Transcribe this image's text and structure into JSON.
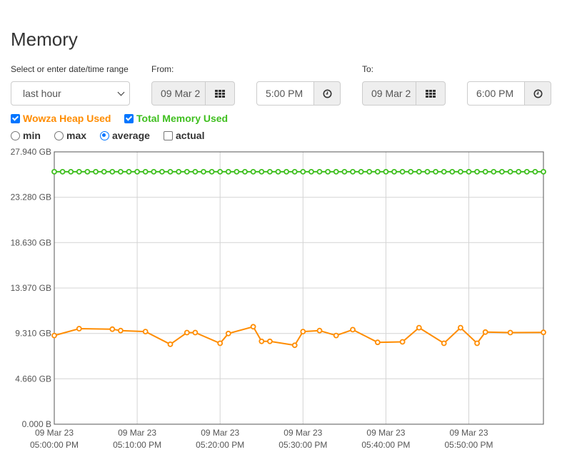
{
  "page": {
    "title": "Memory"
  },
  "range": {
    "label": "Select or enter date/time range",
    "selected": "last hour",
    "from_label": "From:",
    "to_label": "To:",
    "from_date": "09 Mar 2",
    "from_time": "5:00 PM",
    "to_date": "09 Mar 2",
    "to_time": "6:00 PM"
  },
  "series_toggles": [
    {
      "label": "Wowza Heap Used",
      "checked": true,
      "color": "#ff8c00"
    },
    {
      "label": "Total Memory Used",
      "checked": true,
      "color": "#3fbf1f"
    }
  ],
  "stat_options": [
    {
      "label": "min",
      "type": "radio",
      "selected": false
    },
    {
      "label": "max",
      "type": "radio",
      "selected": false
    },
    {
      "label": "average",
      "type": "radio",
      "selected": true
    },
    {
      "label": "actual",
      "type": "checkbox",
      "selected": false
    }
  ],
  "chart_data": {
    "type": "line",
    "ylim": [
      0,
      27.94
    ],
    "yticks": [
      {
        "value": 27.94,
        "label": "27.940 GB"
      },
      {
        "value": 23.28,
        "label": "23.280 GB"
      },
      {
        "value": 18.63,
        "label": "18.630 GB"
      },
      {
        "value": 13.97,
        "label": "13.970 GB"
      },
      {
        "value": 9.31,
        "label": "9.310 GB"
      },
      {
        "value": 4.66,
        "label": "4.660 GB"
      },
      {
        "value": 0,
        "label": "0.000 B"
      }
    ],
    "xlim": [
      0,
      59
    ],
    "xticks": [
      {
        "value": 0,
        "line1": "09 Mar 23",
        "line2": "05:00:00 PM"
      },
      {
        "value": 10,
        "line1": "09 Mar 23",
        "line2": "05:10:00 PM"
      },
      {
        "value": 20,
        "line1": "09 Mar 23",
        "line2": "05:20:00 PM"
      },
      {
        "value": 30,
        "line1": "09 Mar 23",
        "line2": "05:30:00 PM"
      },
      {
        "value": 40,
        "line1": "09 Mar 23",
        "line2": "05:40:00 PM"
      },
      {
        "value": 50,
        "line1": "09 Mar 23",
        "line2": "05:50:00 PM"
      }
    ],
    "series": [
      {
        "color": "#ff8c00",
        "points": [
          [
            0,
            9.1
          ],
          [
            3,
            9.8
          ],
          [
            7,
            9.75
          ],
          [
            8,
            9.6
          ],
          [
            11,
            9.5
          ],
          [
            14,
            8.2
          ],
          [
            16,
            9.4
          ],
          [
            17,
            9.4
          ],
          [
            20,
            8.3
          ],
          [
            21,
            9.3
          ],
          [
            24,
            10.0
          ],
          [
            25,
            8.5
          ],
          [
            26,
            8.5
          ],
          [
            29,
            8.1
          ],
          [
            30,
            9.5
          ],
          [
            32,
            9.6
          ],
          [
            34,
            9.1
          ],
          [
            36,
            9.7
          ],
          [
            39,
            8.4
          ],
          [
            42,
            8.45
          ],
          [
            44,
            9.9
          ],
          [
            47,
            8.3
          ],
          [
            49,
            9.9
          ],
          [
            51,
            8.3
          ],
          [
            52,
            9.45
          ],
          [
            55,
            9.4
          ],
          [
            59,
            9.42
          ]
        ]
      },
      {
        "color": "#3fbf1f",
        "points": [
          [
            0,
            25.9
          ],
          [
            1,
            25.9
          ],
          [
            2,
            25.9
          ],
          [
            3,
            25.9
          ],
          [
            4,
            25.9
          ],
          [
            5,
            25.9
          ],
          [
            6,
            25.9
          ],
          [
            7,
            25.9
          ],
          [
            8,
            25.9
          ],
          [
            9,
            25.9
          ],
          [
            10,
            25.9
          ],
          [
            11,
            25.9
          ],
          [
            12,
            25.9
          ],
          [
            13,
            25.9
          ],
          [
            14,
            25.9
          ],
          [
            15,
            25.9
          ],
          [
            16,
            25.9
          ],
          [
            17,
            25.9
          ],
          [
            18,
            25.9
          ],
          [
            19,
            25.9
          ],
          [
            20,
            25.9
          ],
          [
            21,
            25.9
          ],
          [
            22,
            25.9
          ],
          [
            23,
            25.9
          ],
          [
            24,
            25.9
          ],
          [
            25,
            25.9
          ],
          [
            26,
            25.9
          ],
          [
            27,
            25.9
          ],
          [
            28,
            25.9
          ],
          [
            29,
            25.9
          ],
          [
            30,
            25.9
          ],
          [
            31,
            25.9
          ],
          [
            32,
            25.9
          ],
          [
            33,
            25.9
          ],
          [
            34,
            25.9
          ],
          [
            35,
            25.9
          ],
          [
            36,
            25.9
          ],
          [
            37,
            25.9
          ],
          [
            38,
            25.9
          ],
          [
            39,
            25.9
          ],
          [
            40,
            25.9
          ],
          [
            41,
            25.9
          ],
          [
            42,
            25.9
          ],
          [
            43,
            25.9
          ],
          [
            44,
            25.9
          ],
          [
            45,
            25.9
          ],
          [
            46,
            25.9
          ],
          [
            47,
            25.9
          ],
          [
            48,
            25.9
          ],
          [
            49,
            25.9
          ],
          [
            50,
            25.9
          ],
          [
            51,
            25.9
          ],
          [
            52,
            25.9
          ],
          [
            53,
            25.9
          ],
          [
            54,
            25.9
          ],
          [
            55,
            25.9
          ],
          [
            56,
            25.9
          ],
          [
            57,
            25.9
          ],
          [
            58,
            25.9
          ],
          [
            59,
            25.9
          ]
        ]
      }
    ]
  }
}
